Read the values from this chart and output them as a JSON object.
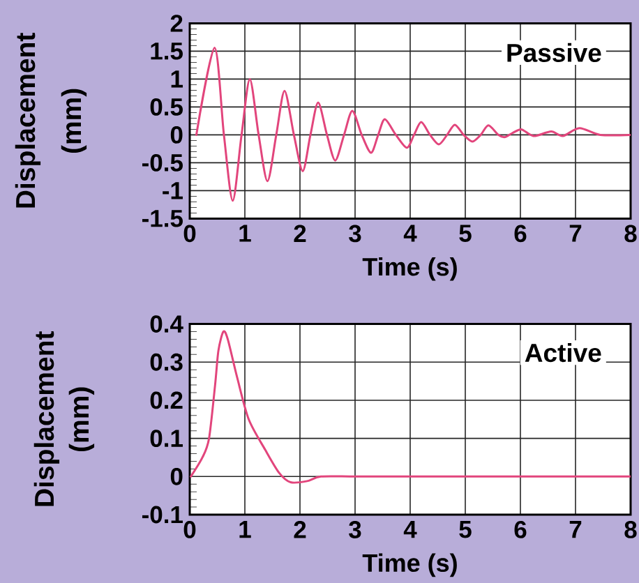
{
  "chart_data": [
    {
      "type": "line",
      "xlabel": "Time (s)",
      "ylabel": "Displacement (mm)",
      "annotations": [
        "Passive"
      ],
      "x": [
        0.12,
        0.45,
        0.62,
        0.78,
        0.94,
        1.09,
        1.25,
        1.41,
        1.57,
        1.72,
        1.89,
        2.05,
        2.19,
        2.33,
        2.49,
        2.64,
        2.8,
        2.95,
        3.12,
        3.29,
        3.42,
        3.54,
        3.74,
        3.94,
        4.07,
        4.2,
        4.36,
        4.52,
        4.67,
        4.81,
        4.97,
        5.13,
        5.28,
        5.42,
        5.6,
        5.72,
        5.85,
        6.01,
        6.15,
        6.27,
        6.56,
        6.77,
        7.07,
        7.45,
        8
      ],
      "series": [
        {
          "color": "#e2457c",
          "values": [
            0,
            1.56,
            0,
            -1.18,
            0,
            1.0,
            0,
            -0.83,
            0,
            0.79,
            0,
            -0.65,
            0,
            0.58,
            0,
            -0.46,
            0,
            0.43,
            0,
            -0.32,
            0,
            0.28,
            0,
            -0.23,
            0,
            0.23,
            0,
            -0.17,
            0,
            0.18,
            0,
            -0.12,
            0,
            0.17,
            0,
            -0.04,
            0.03,
            0.1,
            0.02,
            -0.02,
            0.06,
            -0.02,
            0.12,
            0,
            0
          ]
        }
      ],
      "xlim": [
        0,
        8
      ],
      "ylim": [
        -1.5,
        2
      ],
      "xticks": [
        0,
        1,
        2,
        3,
        4,
        5,
        6,
        7,
        8
      ],
      "yticks": [
        -1.5,
        -1,
        -0.5,
        0,
        0.5,
        1,
        1.5,
        2
      ],
      "grid": true
    },
    {
      "type": "line",
      "xlabel": "Time (s)",
      "ylabel": "Displacement (mm)",
      "annotations": [
        "Active"
      ],
      "x": [
        0.02,
        0.23,
        0.35,
        0.46,
        0.52,
        0.61,
        0.69,
        0.86,
        1.07,
        1.37,
        1.62,
        1.83,
        2.13,
        2.38,
        3,
        4,
        5,
        6,
        7,
        8
      ],
      "series": [
        {
          "color": "#e2457c",
          "values": [
            0,
            0.05,
            0.1,
            0.24,
            0.33,
            0.38,
            0.36,
            0.26,
            0.15,
            0.07,
            0.01,
            -0.015,
            -0.012,
            0,
            0,
            0,
            0,
            0,
            0,
            0
          ]
        }
      ],
      "xlim": [
        0,
        8
      ],
      "ylim": [
        -0.1,
        0.4
      ],
      "xticks": [
        0,
        1,
        2,
        3,
        4,
        5,
        6,
        7,
        8
      ],
      "yticks": [
        -0.1,
        0,
        0.1,
        0.2,
        0.3,
        0.4
      ],
      "grid": true
    }
  ]
}
